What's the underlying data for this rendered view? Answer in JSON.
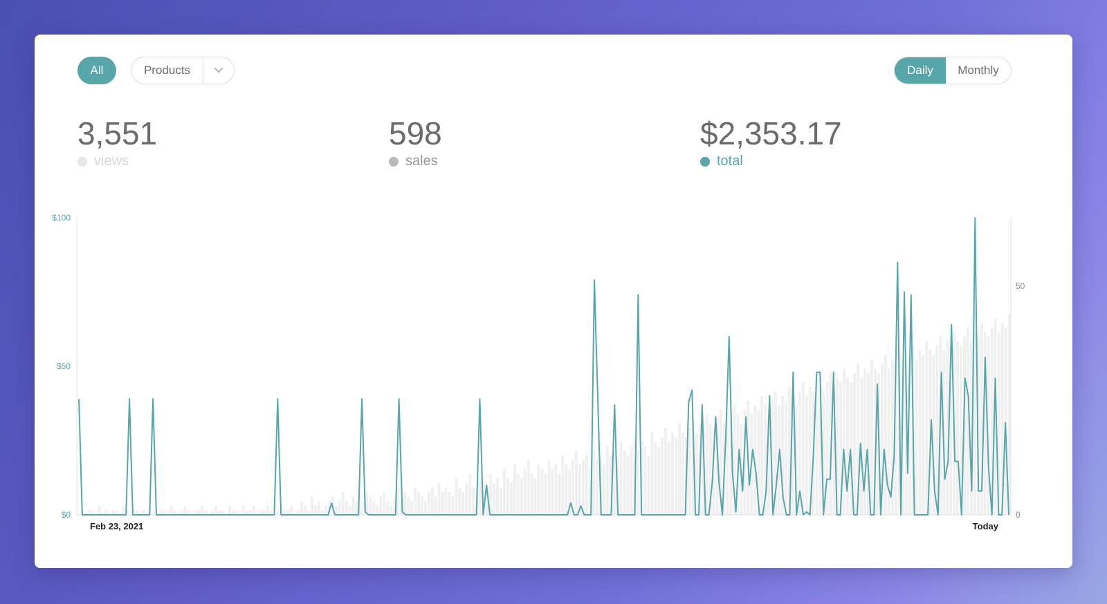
{
  "filters": {
    "all_label": "All",
    "products_label": "Products",
    "products_caret_icon": "chevron-down-icon"
  },
  "period": {
    "daily_label": "Daily",
    "monthly_label": "Monthly",
    "selected": "Daily"
  },
  "stats": [
    {
      "value": "3,551",
      "label": "views",
      "dot_color": "#e6e6e6",
      "label_color": "#d6d6d6"
    },
    {
      "value": "598",
      "label": "sales",
      "dot_color": "#b9b9b9",
      "label_color": "#9a9a9a"
    },
    {
      "value": "$2,353.17",
      "label": "total",
      "dot_color": "#57a6a9",
      "label_color": "#57a6a9"
    }
  ],
  "colors": {
    "accent": "#57a6a9",
    "bars": "#f0f0f0"
  },
  "chart_data": {
    "type": "line",
    "x_labels": {
      "start": "Feb 23, 2021",
      "end": "Today"
    },
    "y_left": {
      "ticks": [
        "$100",
        "$50",
        "$0"
      ],
      "min": 0,
      "max": 100
    },
    "y_right": {
      "ticks": [
        "50",
        "0"
      ],
      "min": 0,
      "max": 65
    },
    "grid": false,
    "series": [
      {
        "axis": "left",
        "type": "line",
        "color": "#57a6a9",
        "values": [
          39,
          0,
          0,
          0,
          0,
          0,
          0,
          0,
          0,
          0,
          0,
          0,
          0,
          0,
          0,
          39,
          0,
          0,
          0,
          0,
          0,
          0,
          39,
          0,
          0,
          0,
          0,
          0,
          0,
          0,
          0,
          0,
          0,
          0,
          0,
          0,
          0,
          0,
          0,
          0,
          0,
          0,
          0,
          0,
          0,
          0,
          0,
          0,
          0,
          0,
          0,
          0,
          0,
          0,
          0,
          0,
          0,
          0,
          0,
          39,
          0,
          0,
          0,
          0,
          0,
          0,
          0,
          0,
          0,
          0,
          0,
          0,
          0,
          0,
          0,
          4,
          0,
          0,
          0,
          0,
          0,
          0,
          0,
          0,
          39,
          1,
          0,
          0,
          0,
          0,
          0,
          0,
          0,
          0,
          0,
          39,
          1,
          0,
          0,
          0,
          0,
          0,
          0,
          0,
          0,
          0,
          0,
          0,
          0,
          0,
          0,
          0,
          0,
          0,
          0,
          0,
          0,
          0,
          0,
          39,
          0,
          10,
          0,
          0,
          0,
          0,
          0,
          0,
          0,
          0,
          0,
          0,
          0,
          0,
          0,
          0,
          0,
          0,
          0,
          0,
          0,
          0,
          0,
          0,
          0,
          0,
          4,
          0,
          0,
          3,
          0,
          0,
          0,
          79,
          40,
          0,
          0,
          0,
          0,
          37,
          0,
          0,
          0,
          0,
          0,
          0,
          74,
          0,
          0,
          0,
          0,
          0,
          0,
          0,
          0,
          0,
          0,
          0,
          0,
          0,
          0,
          38,
          42,
          0,
          0,
          37,
          0,
          0,
          11,
          33,
          11,
          0,
          26,
          60,
          14,
          1,
          22,
          8,
          33,
          10,
          22,
          14,
          0,
          0,
          8,
          40,
          0,
          10,
          22,
          6,
          0,
          0,
          48,
          0,
          8,
          0,
          1,
          0,
          20,
          48,
          48,
          0,
          12,
          12,
          48,
          0,
          0,
          22,
          8,
          22,
          0,
          0,
          24,
          8,
          22,
          0,
          0,
          44,
          0,
          22,
          10,
          6,
          20,
          85,
          0,
          75,
          14,
          74,
          0,
          0,
          0,
          0,
          0,
          32,
          8,
          0,
          48,
          12,
          18,
          64,
          18,
          18,
          0,
          46,
          40,
          8,
          100,
          8,
          8,
          53,
          16,
          0,
          46,
          0,
          0,
          31,
          0
        ]
      },
      {
        "axis": "right",
        "type": "bar",
        "color": "#f0f0f0",
        "values": [
          0,
          1,
          0,
          1,
          1,
          0,
          2,
          0,
          1,
          0,
          1,
          1,
          0,
          2,
          1,
          0,
          1,
          1,
          0,
          1,
          0,
          2,
          1,
          0,
          1,
          1,
          0,
          2,
          1,
          0,
          1,
          2,
          1,
          0,
          1,
          1,
          2,
          1,
          0,
          1,
          2,
          1,
          1,
          0,
          2,
          1,
          1,
          0,
          2,
          1,
          1,
          2,
          0,
          1,
          1,
          2,
          1,
          0,
          1,
          2,
          1,
          1,
          2,
          0,
          1,
          3,
          2,
          1,
          4,
          2,
          3,
          1,
          2,
          3,
          4,
          2,
          3,
          5,
          3,
          2,
          4,
          3,
          2,
          3,
          5,
          4,
          3,
          2,
          4,
          5,
          3,
          2,
          4,
          6,
          3,
          5,
          4,
          3,
          6,
          5,
          4,
          3,
          5,
          6,
          4,
          7,
          5,
          6,
          5,
          4,
          8,
          6,
          5,
          7,
          9,
          6,
          5,
          8,
          7,
          6,
          9,
          7,
          8,
          6,
          10,
          8,
          7,
          11,
          9,
          8,
          10,
          12,
          9,
          8,
          11,
          10,
          9,
          12,
          10,
          11,
          9,
          13,
          11,
          10,
          12,
          14,
          11,
          12,
          13,
          10,
          14,
          12,
          13,
          11,
          15,
          13,
          14,
          12,
          16,
          14,
          13,
          15,
          17,
          14,
          16,
          15,
          13,
          18,
          16,
          15,
          17,
          19,
          16,
          18,
          17,
          20,
          18,
          17,
          19,
          21,
          18,
          20,
          19,
          22,
          20,
          19,
          21,
          23,
          20,
          22,
          21,
          24,
          22,
          20,
          23,
          25,
          22,
          24,
          23,
          26,
          24,
          22,
          25,
          27,
          24,
          26,
          25,
          28,
          26,
          24,
          27,
          29,
          26,
          28,
          27,
          30,
          28,
          27,
          29,
          31,
          28,
          30,
          29,
          32,
          30,
          29,
          31,
          33,
          30,
          32,
          31,
          34,
          32,
          31,
          33,
          35,
          32,
          34,
          33,
          36,
          34,
          33,
          35,
          37,
          34,
          36,
          35,
          38,
          36,
          35,
          37,
          39,
          36,
          38,
          37,
          40,
          38,
          37,
          39,
          41,
          38,
          40,
          39,
          42,
          40,
          39,
          41,
          43,
          40,
          42,
          41,
          44
        ]
      }
    ]
  }
}
